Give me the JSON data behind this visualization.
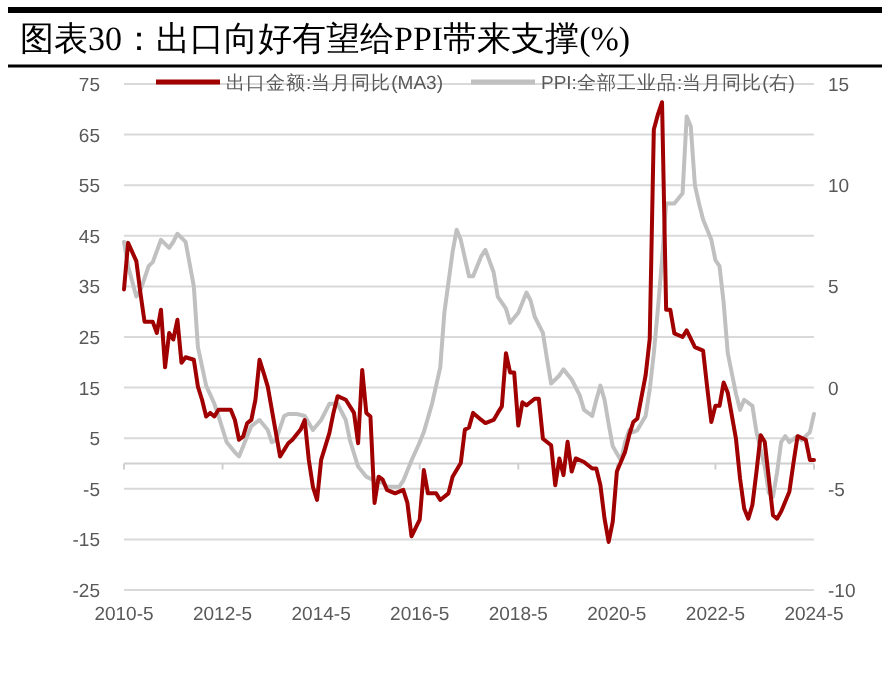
{
  "chart_data": {
    "type": "line",
    "title": "图表30：出口向好有望给PPI带来支撑(%)",
    "series": [
      {
        "name": "出口金额:当月同比(MA3)",
        "color": "#a00000",
        "x": [
          "2010-05",
          "2010-06",
          "2010-08",
          "2010-09",
          "2010-10",
          "2010-12",
          "2011-01",
          "2011-02",
          "2011-03",
          "2011-04",
          "2011-05",
          "2011-06",
          "2011-07",
          "2011-08",
          "2011-10",
          "2011-11",
          "2011-12",
          "2012-01",
          "2012-02",
          "2012-03",
          "2012-04",
          "2012-07",
          "2012-08",
          "2012-09",
          "2012-10",
          "2012-11",
          "2012-12",
          "2013-01",
          "2013-02",
          "2013-03",
          "2013-04",
          "2013-06",
          "2013-07",
          "2013-09",
          "2013-10",
          "2013-12",
          "2014-01",
          "2014-02",
          "2014-03",
          "2014-04",
          "2014-05",
          "2014-07",
          "2014-08",
          "2014-09",
          "2014-11",
          "2015-01",
          "2015-02",
          "2015-03",
          "2015-04",
          "2015-05",
          "2015-06",
          "2015-07",
          "2015-08",
          "2015-09",
          "2015-11",
          "2016-01",
          "2016-02",
          "2016-03",
          "2016-05",
          "2016-06",
          "2016-07",
          "2016-09",
          "2016-10",
          "2016-12",
          "2017-01",
          "2017-03",
          "2017-04",
          "2017-05",
          "2017-06",
          "2017-08",
          "2017-09",
          "2017-11",
          "2017-12",
          "2018-01",
          "2018-02",
          "2018-03",
          "2018-04",
          "2018-05",
          "2018-06",
          "2018-07",
          "2018-09",
          "2018-10",
          "2018-11",
          "2019-01",
          "2019-02",
          "2019-03",
          "2019-04",
          "2019-05",
          "2019-06",
          "2019-07",
          "2019-09",
          "2019-11",
          "2019-12",
          "2020-01",
          "2020-02",
          "2020-03",
          "2020-04",
          "2020-05",
          "2020-07",
          "2020-08",
          "2020-09",
          "2020-10",
          "2020-12",
          "2021-01",
          "2021-02",
          "2021-03",
          "2021-04",
          "2021-05",
          "2021-06",
          "2021-07",
          "2021-09",
          "2021-10",
          "2021-12",
          "2022-02",
          "2022-03",
          "2022-04",
          "2022-05",
          "2022-06",
          "2022-07",
          "2022-08",
          "2022-10",
          "2022-11",
          "2022-12",
          "2023-01",
          "2023-02",
          "2023-03",
          "2023-04",
          "2023-05",
          "2023-07",
          "2023-08",
          "2023-09",
          "2023-11",
          "2023-12",
          "2024-01",
          "2024-03",
          "2024-04",
          "2024-05"
        ],
        "values": [
          34.4,
          43.6,
          40,
          33.7,
          28,
          28,
          25.8,
          30.4,
          19,
          25.8,
          24.5,
          28.4,
          19.9,
          21,
          20.5,
          15.2,
          12.6,
          9.3,
          10,
          9.3,
          10.6,
          10.6,
          8.6,
          4.7,
          5.3,
          8,
          8.6,
          12.6,
          20.5,
          17.9,
          15.2,
          6,
          1.4,
          4,
          4.7,
          6.7,
          8.6,
          0.7,
          -4.6,
          -7.2,
          0.7,
          6,
          10,
          13.3,
          12.6,
          10,
          4,
          18.5,
          10,
          9.3,
          -7.8,
          -2.6,
          -3.2,
          -5.2,
          -5.9,
          -5.2,
          -7.8,
          -14.4,
          -11.1,
          -1.3,
          -5.9,
          -5.9,
          -7.2,
          -5.9,
          -2.6,
          0.1,
          6.7,
          7.1,
          10,
          8.6,
          8,
          8.6,
          10,
          11.3,
          21.8,
          18,
          18,
          7.5,
          12.1,
          11.5,
          12.8,
          12.8,
          4.9,
          3.6,
          -4.3,
          1,
          -2.3,
          4.3,
          -1.6,
          1,
          0.3,
          -1,
          -1,
          -4.3,
          -10.9,
          -15.5,
          -11.5,
          -1.6,
          2.3,
          5.6,
          8.2,
          8.9,
          17.4,
          24.6,
          66,
          69,
          71.4,
          30.4,
          30.4,
          25.7,
          25,
          26.3,
          23,
          22.3,
          15,
          8.2,
          11.4,
          11.4,
          16,
          14,
          4.9,
          -3,
          -8.9,
          -10.9,
          -8.2,
          -1.6,
          5.6,
          4.3,
          -10.2,
          -10.9,
          -9.5,
          -5.6,
          0.1,
          5.4,
          4.7,
          0.7,
          0.7
        ]
      },
      {
        "name": "PPI:全部工业品:当月同比(右)",
        "color": "#c0c0c0",
        "axis": "y2",
        "x": [
          "2010-05",
          "2010-06",
          "2010-08",
          "2010-09",
          "2010-11",
          "2010-12",
          "2011-02",
          "2011-04",
          "2011-05",
          "2011-06",
          "2011-08",
          "2011-10",
          "2011-11",
          "2012-01",
          "2012-03",
          "2012-04",
          "2012-06",
          "2012-08",
          "2012-09",
          "2012-11",
          "2012-12",
          "2013-02",
          "2013-04",
          "2013-05",
          "2013-06",
          "2013-08",
          "2013-09",
          "2013-11",
          "2014-01",
          "2014-03",
          "2014-05",
          "2014-07",
          "2014-09",
          "2014-11",
          "2014-12",
          "2015-02",
          "2015-04",
          "2015-06",
          "2015-08",
          "2015-09",
          "2015-12",
          "2016-01",
          "2016-03",
          "2016-05",
          "2016-06",
          "2016-08",
          "2016-10",
          "2016-11",
          "2017-01",
          "2017-02",
          "2017-03",
          "2017-05",
          "2017-06",
          "2017-08",
          "2017-09",
          "2017-11",
          "2017-12",
          "2018-02",
          "2018-03",
          "2018-05",
          "2018-07",
          "2018-08",
          "2018-09",
          "2018-11",
          "2018-12",
          "2019-01",
          "2019-03",
          "2019-04",
          "2019-06",
          "2019-08",
          "2019-09",
          "2019-11",
          "2019-12",
          "2020-01",
          "2020-02",
          "2020-03",
          "2020-04",
          "2020-06",
          "2020-07",
          "2020-08",
          "2020-09",
          "2020-10",
          "2020-12",
          "2021-01",
          "2021-02",
          "2021-03",
          "2021-04",
          "2021-05",
          "2021-06",
          "2021-07",
          "2021-09",
          "2021-10",
          "2021-11",
          "2021-12",
          "2022-01",
          "2022-02",
          "2022-04",
          "2022-05",
          "2022-06",
          "2022-07",
          "2022-08",
          "2022-10",
          "2022-11",
          "2022-12",
          "2023-02",
          "2023-03",
          "2023-05",
          "2023-06",
          "2023-07",
          "2023-08",
          "2023-09",
          "2023-10",
          "2023-11",
          "2024-01",
          "2024-02",
          "2024-03",
          "2024-04",
          "2024-05"
        ],
        "values": [
          7.2,
          6,
          4.5,
          4.8,
          6,
          6.2,
          7.3,
          6.9,
          7.2,
          7.6,
          7.2,
          5,
          2,
          0.1,
          -0.8,
          -1.4,
          -2.7,
          -3.2,
          -3.4,
          -2.4,
          -1.9,
          -1.6,
          -2.1,
          -2.7,
          -2.6,
          -1.4,
          -1.3,
          -1.3,
          -1.4,
          -2.1,
          -1.6,
          -0.8,
          -0.8,
          -1.6,
          -2.6,
          -3.9,
          -4.4,
          -4.6,
          -4.7,
          -4.9,
          -4.9,
          -4.6,
          -3.6,
          -2.7,
          -2.2,
          -0.8,
          1,
          3.7,
          6.7,
          7.8,
          7.3,
          5.5,
          5.5,
          6.5,
          6.8,
          5.7,
          4.5,
          3.9,
          3.2,
          3.7,
          4.7,
          4.3,
          3.5,
          2.7,
          1.4,
          0.2,
          0.6,
          0.9,
          0.4,
          -0.4,
          -1.1,
          -1.4,
          -0.6,
          0.1,
          -0.6,
          -1.8,
          -2.9,
          -3.6,
          -2.7,
          -2.1,
          -2.2,
          -2.1,
          -1.4,
          -0.1,
          1.7,
          3.9,
          6.3,
          9.1,
          9.1,
          9.1,
          9.6,
          13.4,
          12.9,
          10,
          9.1,
          8.3,
          7.3,
          6.3,
          6,
          4.2,
          1.7,
          -0.3,
          -1.1,
          -0.6,
          -0.9,
          -2.2,
          -3.9,
          -5.2,
          -5.4,
          -4.2,
          -2.7,
          -2.4,
          -2.7,
          -2.4,
          -2.6,
          -2.4,
          -2.2,
          -1.3
        ]
      }
    ],
    "xlim": [
      "2010-05",
      "2024-05"
    ],
    "xticks": [
      {
        "value": "2010-05",
        "label": "2010-5"
      },
      {
        "value": "2012-05",
        "label": "2012-5"
      },
      {
        "value": "2014-05",
        "label": "2014-5"
      },
      {
        "value": "2016-05",
        "label": "2016-5"
      },
      {
        "value": "2018-05",
        "label": "2018-5"
      },
      {
        "value": "2020-05",
        "label": "2020-5"
      },
      {
        "value": "2022-05",
        "label": "2022-5"
      },
      {
        "value": "2024-05",
        "label": "2024-5"
      }
    ],
    "ylim": [
      -25,
      75
    ],
    "yticks": [
      -25,
      -15,
      -5,
      5,
      15,
      25,
      35,
      45,
      55,
      65,
      75
    ],
    "y2lim": [
      -10,
      15
    ],
    "y2ticks": [
      -10,
      -5,
      0,
      5,
      10,
      15
    ],
    "ref_lines": [
      {
        "axis": "y",
        "value": 0,
        "color": "#d0d0d0"
      }
    ],
    "grid": "y",
    "legend": "top"
  }
}
